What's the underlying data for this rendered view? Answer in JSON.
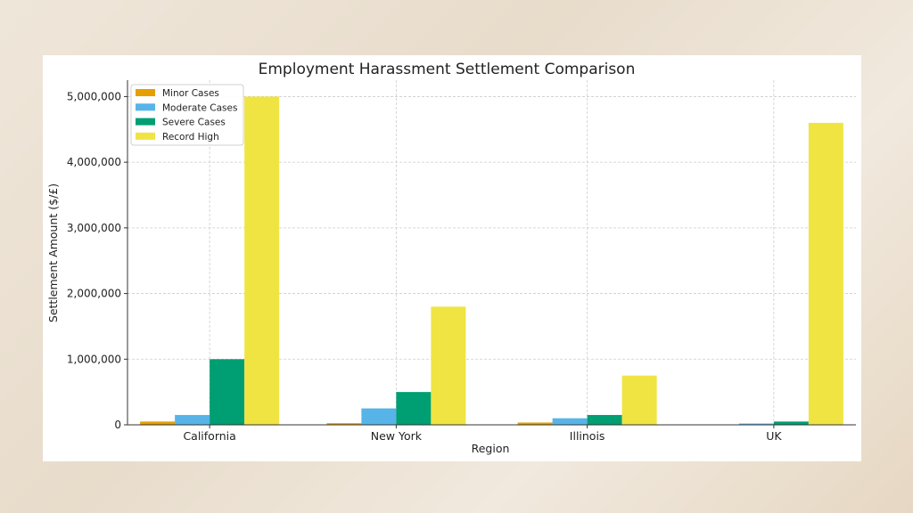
{
  "chart_data": {
    "type": "bar",
    "title": "Employment Harassment Settlement Comparison",
    "xlabel": "Region",
    "ylabel": "Settlement Amount ($/£)",
    "categories": [
      "California",
      "New York",
      "Illinois",
      "UK"
    ],
    "series": [
      {
        "name": "Minor Cases",
        "color": "#e69f00",
        "values": [
          50000,
          25000,
          35000,
          5000
        ]
      },
      {
        "name": "Moderate Cases",
        "color": "#56b4e9",
        "values": [
          150000,
          250000,
          100000,
          20000
        ]
      },
      {
        "name": "Severe Cases",
        "color": "#009e73",
        "values": [
          1000000,
          500000,
          150000,
          50000
        ]
      },
      {
        "name": "Record High",
        "color": "#f0e442",
        "values": [
          5000000,
          1800000,
          750000,
          4600000
        ]
      }
    ],
    "ylim": [
      0,
      5250000
    ],
    "yticks": [
      0,
      1000000,
      2000000,
      3000000,
      4000000,
      5000000
    ],
    "ytick_labels": [
      "0",
      "1,000,000",
      "2,000,000",
      "3,000,000",
      "4,000,000",
      "5,000,000"
    ],
    "grid": true,
    "legend_position": "top-left"
  }
}
